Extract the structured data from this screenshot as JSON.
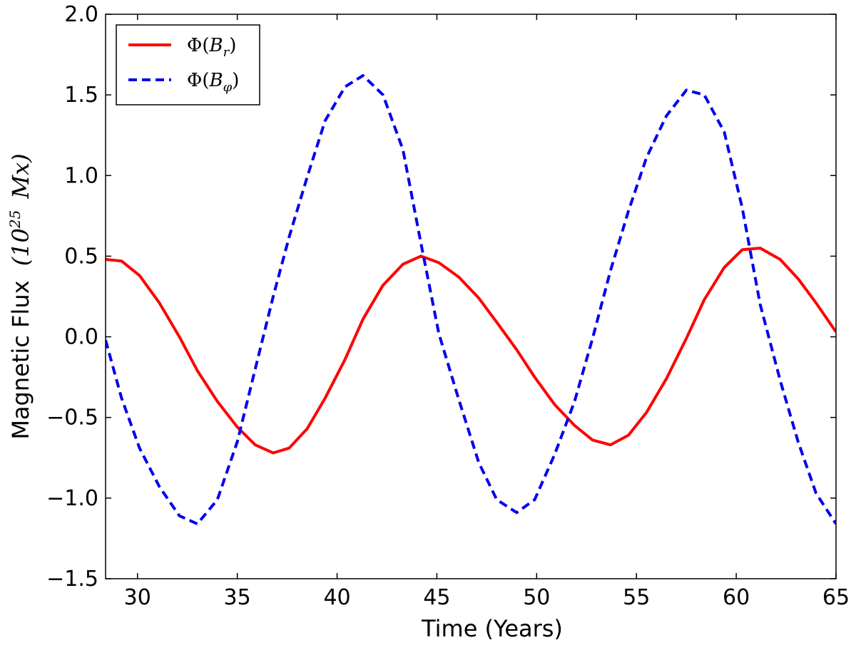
{
  "chart_data": {
    "type": "line",
    "title": "",
    "xlabel": "Time (Years)",
    "ylabel": {
      "text": "Magnetic Flux",
      "paren_open": "(",
      "base": "10",
      "exponent": "25",
      "unit": "Mx",
      "paren_close": ")"
    },
    "xlim": [
      28.4,
      65
    ],
    "ylim": [
      -1.5,
      2.0
    ],
    "xticks": [
      30,
      35,
      40,
      45,
      50,
      55,
      60,
      65
    ],
    "xtick_labels": [
      "30",
      "35",
      "40",
      "45",
      "50",
      "55",
      "60",
      "65"
    ],
    "yticks": [
      -1.5,
      -1.0,
      -0.5,
      0.0,
      0.5,
      1.0,
      1.5,
      2.0
    ],
    "ytick_labels": [
      "−1.5",
      "−1.0",
      "−0.5",
      "0.0",
      "0.5",
      "1.0",
      "1.5",
      "2.0"
    ],
    "grid": false,
    "legend_position": "top-left",
    "series": [
      {
        "name": "Φ(B_r)",
        "legend": {
          "phi": "Φ(",
          "var": "B",
          "sub": "r",
          "close": ")"
        },
        "color": "#ff0000",
        "style": "solid",
        "x": [
          28.4,
          29.2,
          30.1,
          31.1,
          32.1,
          33.0,
          34.0,
          35.0,
          35.9,
          36.8,
          37.6,
          38.5,
          39.4,
          40.4,
          41.3,
          42.3,
          43.3,
          44.2,
          45.1,
          46.1,
          47.1,
          48.0,
          49.0,
          49.9,
          50.9,
          51.9,
          52.8,
          53.7,
          54.6,
          55.5,
          56.5,
          57.5,
          58.4,
          59.4,
          60.3,
          61.2,
          62.2,
          63.1,
          64.0,
          65.0
        ],
        "y": [
          0.48,
          0.47,
          0.38,
          0.21,
          0.0,
          -0.21,
          -0.4,
          -0.56,
          -0.67,
          -0.72,
          -0.69,
          -0.57,
          -0.38,
          -0.14,
          0.11,
          0.32,
          0.45,
          0.5,
          0.46,
          0.37,
          0.24,
          0.09,
          -0.08,
          -0.25,
          -0.42,
          -0.55,
          -0.64,
          -0.67,
          -0.61,
          -0.47,
          -0.26,
          -0.01,
          0.23,
          0.43,
          0.54,
          0.55,
          0.48,
          0.36,
          0.21,
          0.03
        ]
      },
      {
        "name": "Φ(B_φ)",
        "legend": {
          "phi": "Φ(",
          "var": "B",
          "sub": "φ",
          "close": ")"
        },
        "color": "#0000ee",
        "style": "dashed",
        "x": [
          28.4,
          29.2,
          30.1,
          31.1,
          32.1,
          33.0,
          34.0,
          35.0,
          35.9,
          36.8,
          37.6,
          38.5,
          39.4,
          40.4,
          41.3,
          42.3,
          43.3,
          44.2,
          45.1,
          46.1,
          47.1,
          48.0,
          49.0,
          49.9,
          50.9,
          51.9,
          52.8,
          53.7,
          54.6,
          55.5,
          56.5,
          57.5,
          58.4,
          59.4,
          60.3,
          61.2,
          62.2,
          63.1,
          64.0,
          65.0
        ],
        "y": [
          -0.02,
          -0.38,
          -0.69,
          -0.93,
          -1.11,
          -1.16,
          -1.01,
          -0.65,
          -0.2,
          0.25,
          0.62,
          0.99,
          1.34,
          1.55,
          1.62,
          1.5,
          1.16,
          0.58,
          0.02,
          -0.39,
          -0.78,
          -1.01,
          -1.09,
          -1.01,
          -0.73,
          -0.4,
          -0.01,
          0.41,
          0.78,
          1.11,
          1.37,
          1.53,
          1.5,
          1.27,
          0.8,
          0.2,
          -0.27,
          -0.65,
          -0.97,
          -1.16
        ]
      }
    ]
  }
}
